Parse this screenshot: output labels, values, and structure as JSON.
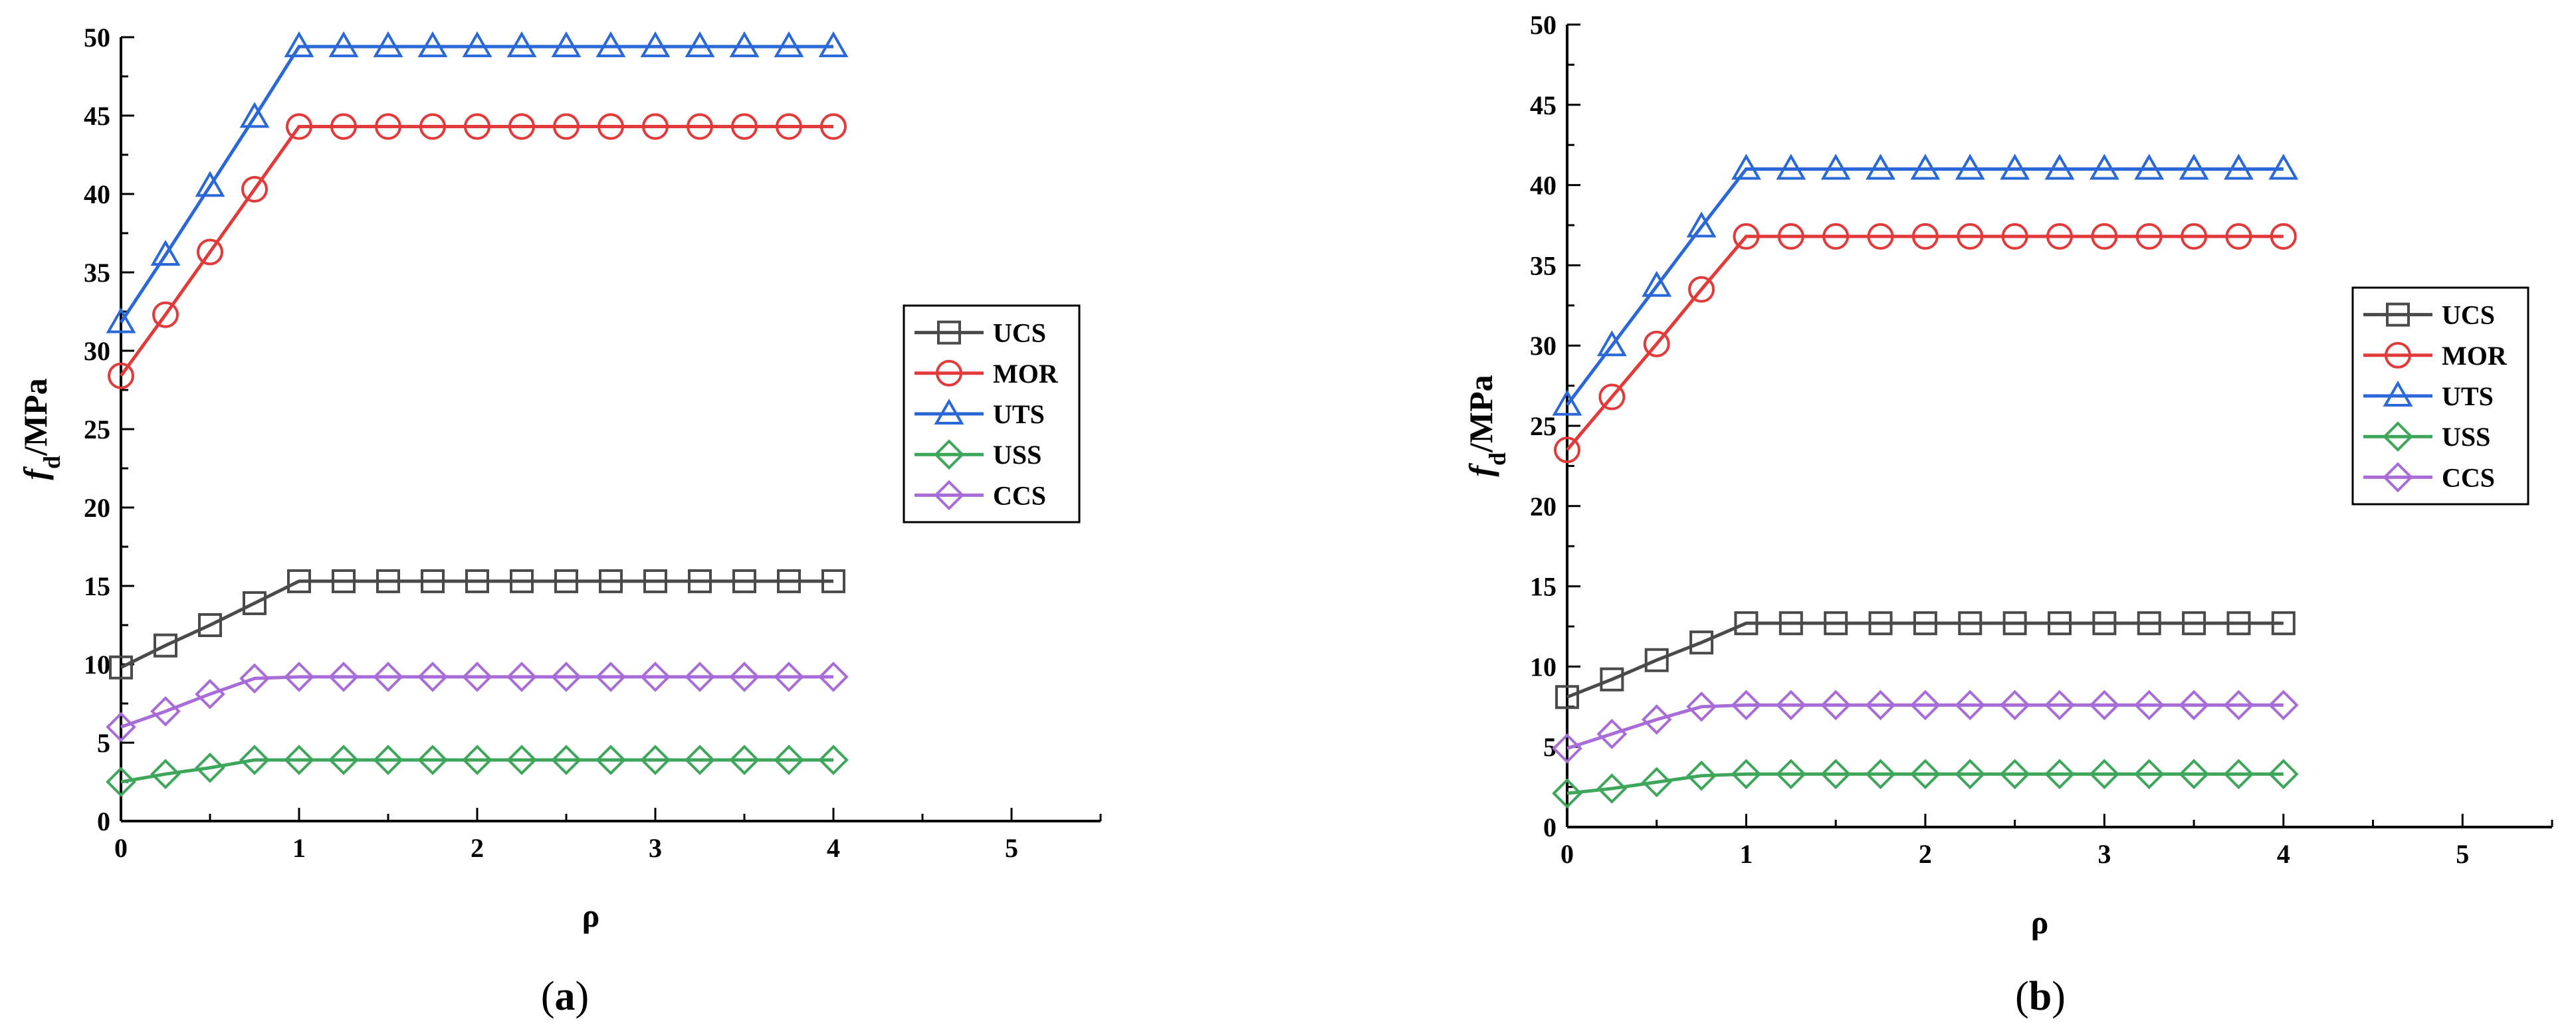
{
  "colors": {
    "UCS": "#4a4a4a",
    "MOR": "#e23a3a",
    "UTS": "#2a68d8",
    "USS": "#3ea65a",
    "CCS": "#a76cd8"
  },
  "chart_data": [
    {
      "type": "line",
      "panel_label": "(a)",
      "xlabel": "ρ",
      "ylabel_main": "f",
      "ylabel_sub": "d",
      "ylabel_rest": "/MPa",
      "xlim": [
        0,
        5.5
      ],
      "ylim": [
        0,
        50
      ],
      "xticks": [
        0,
        1,
        2,
        3,
        4,
        5
      ],
      "yticks": [
        0,
        5,
        10,
        15,
        20,
        25,
        30,
        35,
        40,
        45,
        50
      ],
      "legend_position": "right-middle",
      "x": [
        0,
        0.25,
        0.5,
        0.75,
        1,
        1.25,
        1.5,
        1.75,
        2,
        2.25,
        2.5,
        2.75,
        3,
        3.25,
        3.5,
        3.75,
        4
      ],
      "series": [
        {
          "name": "UCS",
          "marker": "square",
          "values": [
            9.8,
            11.2,
            12.5,
            13.9,
            15.3,
            15.3,
            15.3,
            15.3,
            15.3,
            15.3,
            15.3,
            15.3,
            15.3,
            15.3,
            15.3,
            15.3,
            15.3
          ]
        },
        {
          "name": "MOR",
          "marker": "circle",
          "values": [
            28.4,
            32.3,
            36.3,
            40.3,
            44.3,
            44.3,
            44.3,
            44.3,
            44.3,
            44.3,
            44.3,
            44.3,
            44.3,
            44.3,
            44.3,
            44.3,
            44.3
          ]
        },
        {
          "name": "UTS",
          "marker": "triangle",
          "values": [
            31.8,
            36.1,
            40.5,
            44.9,
            49.4,
            49.4,
            49.4,
            49.4,
            49.4,
            49.4,
            49.4,
            49.4,
            49.4,
            49.4,
            49.4,
            49.4,
            49.4
          ]
        },
        {
          "name": "USS",
          "marker": "diamond",
          "values": [
            2.5,
            3.0,
            3.4,
            3.9,
            3.9,
            3.9,
            3.9,
            3.9,
            3.9,
            3.9,
            3.9,
            3.9,
            3.9,
            3.9,
            3.9,
            3.9,
            3.9
          ]
        },
        {
          "name": "CCS",
          "marker": "diamond",
          "values": [
            6.0,
            7.0,
            8.1,
            9.1,
            9.2,
            9.2,
            9.2,
            9.2,
            9.2,
            9.2,
            9.2,
            9.2,
            9.2,
            9.2,
            9.2,
            9.2,
            9.2
          ]
        }
      ]
    },
    {
      "type": "line",
      "panel_label": "(b)",
      "xlabel": "ρ",
      "ylabel_main": "f",
      "ylabel_sub": "d",
      "ylabel_rest": "/MPa",
      "xlim": [
        0,
        5.5
      ],
      "ylim": [
        0,
        50
      ],
      "xticks": [
        0,
        1,
        2,
        3,
        4,
        5
      ],
      "yticks": [
        0,
        5,
        10,
        15,
        20,
        25,
        30,
        35,
        40,
        45,
        50
      ],
      "legend_position": "right-middle",
      "x": [
        0,
        0.25,
        0.5,
        0.75,
        1,
        1.25,
        1.5,
        1.75,
        2,
        2.25,
        2.5,
        2.75,
        3,
        3.25,
        3.5,
        3.75,
        4
      ],
      "series": [
        {
          "name": "UCS",
          "marker": "square",
          "values": [
            8.1,
            9.2,
            10.4,
            11.5,
            12.7,
            12.7,
            12.7,
            12.7,
            12.7,
            12.7,
            12.7,
            12.7,
            12.7,
            12.7,
            12.7,
            12.7,
            12.7
          ]
        },
        {
          "name": "MOR",
          "marker": "circle",
          "values": [
            23.5,
            26.8,
            30.1,
            33.5,
            36.8,
            36.8,
            36.8,
            36.8,
            36.8,
            36.8,
            36.8,
            36.8,
            36.8,
            36.8,
            36.8,
            36.8,
            36.8
          ]
        },
        {
          "name": "UTS",
          "marker": "triangle",
          "values": [
            26.3,
            30.0,
            33.7,
            37.4,
            41.0,
            41.0,
            41.0,
            41.0,
            41.0,
            41.0,
            41.0,
            41.0,
            41.0,
            41.0,
            41.0,
            41.0,
            41.0
          ]
        },
        {
          "name": "USS",
          "marker": "diamond",
          "values": [
            2.1,
            2.4,
            2.8,
            3.2,
            3.3,
            3.3,
            3.3,
            3.3,
            3.3,
            3.3,
            3.3,
            3.3,
            3.3,
            3.3,
            3.3,
            3.3,
            3.3
          ]
        },
        {
          "name": "CCS",
          "marker": "diamond",
          "values": [
            4.9,
            5.8,
            6.7,
            7.5,
            7.6,
            7.6,
            7.6,
            7.6,
            7.6,
            7.6,
            7.6,
            7.6,
            7.6,
            7.6,
            7.6,
            7.6,
            7.6
          ]
        }
      ]
    }
  ]
}
